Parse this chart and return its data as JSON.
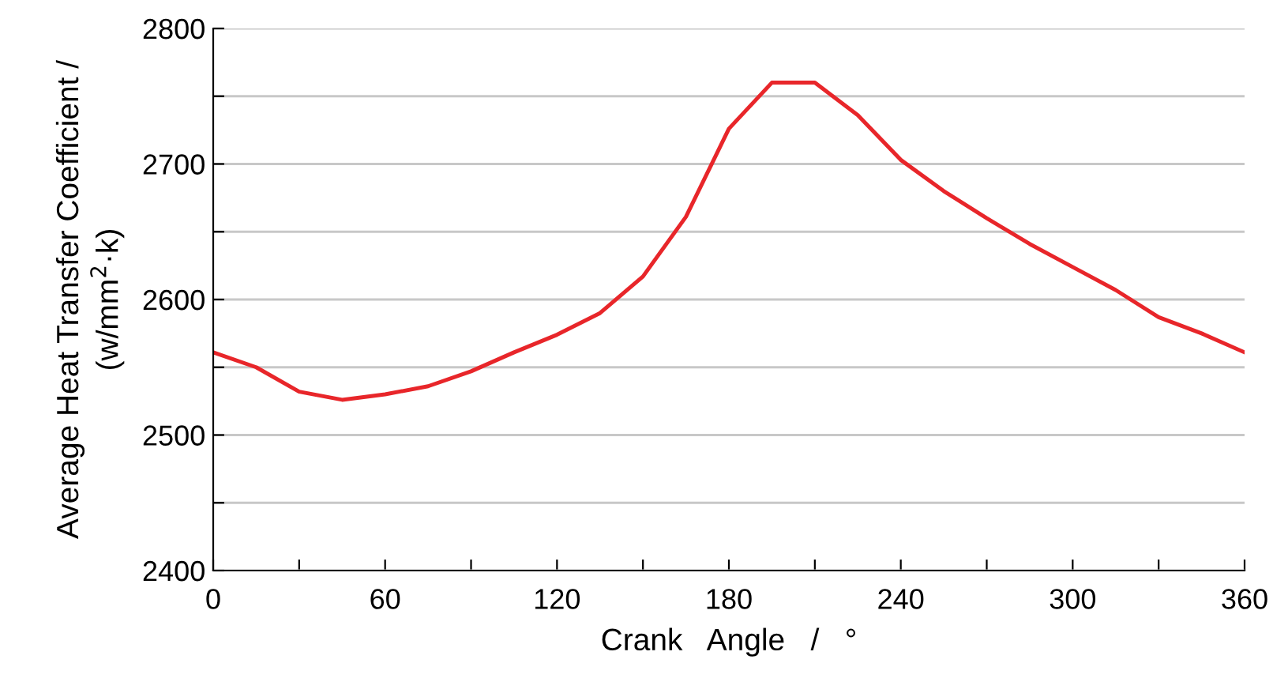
{
  "chart_data": {
    "type": "line",
    "xlabel": "Crank   Angle   /   °",
    "ylabel": "Average Heat Transfer Coefficient /\n(w/mm$^{2}$·k)",
    "x": [
      0,
      15,
      30,
      45,
      60,
      75,
      90,
      105,
      120,
      135,
      150,
      165,
      180,
      195,
      210,
      225,
      240,
      255,
      270,
      285,
      300,
      315,
      330,
      345,
      360
    ],
    "series": [
      {
        "color": "#e8262a",
        "values": [
          2561,
          2550,
          2532,
          2526,
          2530,
          2536,
          2547,
          2561,
          2574,
          2590,
          2617,
          2661,
          2726,
          2760,
          2760,
          2736,
          2703,
          2680,
          2660,
          2641,
          2624,
          2607,
          2587,
          2575,
          2561
        ]
      }
    ],
    "xlim": [
      0,
      360
    ],
    "ylim": [
      2400,
      2800
    ],
    "xticks": [
      0,
      {
        "value": 30,
        "label": null
      },
      60,
      {
        "value": 90,
        "label": null
      },
      120,
      {
        "value": 150,
        "label": null
      },
      180,
      {
        "value": 210,
        "label": null
      },
      240,
      {
        "value": 270,
        "label": null
      },
      300,
      {
        "value": 330,
        "label": null
      },
      360
    ],
    "yticks": [
      2400,
      {
        "value": 2450,
        "label": null
      },
      2500,
      {
        "value": 2550,
        "label": null
      },
      2600,
      {
        "value": 2650,
        "label": null
      },
      2700,
      {
        "value": 2750,
        "label": null
      },
      2800
    ],
    "grid": "y",
    "marker": "none",
    "line_style": "solid"
  }
}
